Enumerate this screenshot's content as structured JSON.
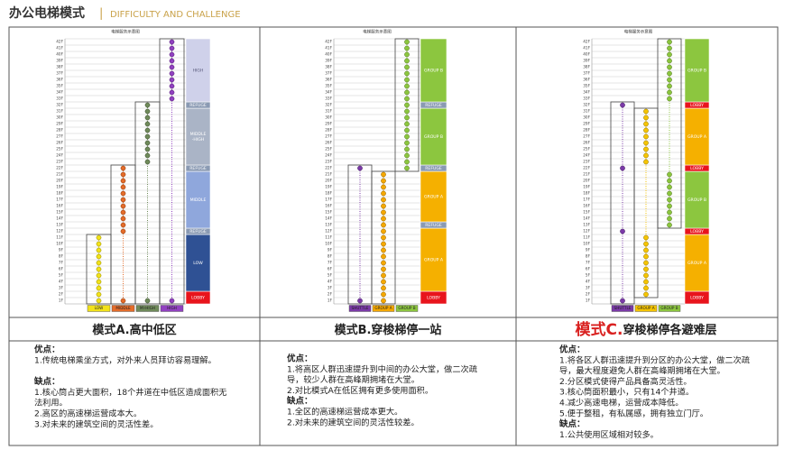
{
  "header": {
    "title": "办公电梯模式",
    "separator": "|",
    "subtitle": "DIFFICULTY AND CHALLENGE"
  },
  "floors": [
    "1F",
    "2F",
    "3F",
    "4F",
    "5F",
    "6F",
    "7F",
    "8F",
    "9F",
    "10F",
    "11F",
    "12F",
    "13F",
    "14F",
    "15F",
    "16F",
    "17F",
    "18F",
    "19F",
    "20F",
    "21F",
    "22F",
    "23F",
    "24F",
    "25F",
    "26F",
    "27F",
    "28F",
    "29F",
    "30F",
    "31F",
    "32F",
    "33F",
    "34F",
    "35F",
    "36F",
    "37F",
    "38F",
    "39F",
    "40F",
    "41F",
    "42F"
  ],
  "panels": [
    {
      "diagram_title": "电梯服务示意图",
      "shafts": [
        {
          "label": "LOW",
          "color": "#f2e21a",
          "stops": [
            [
              1,
              11
            ]
          ]
        },
        {
          "label": "MIDDLE",
          "color": "#e46c2a",
          "stops": [
            [
              1,
              1
            ],
            [
              12,
              22
            ]
          ]
        },
        {
          "label": "MI-HIGH",
          "color": "#6f8a5a",
          "stops": [
            [
              1,
              1
            ],
            [
              23,
              32
            ]
          ]
        },
        {
          "label": "HIGH",
          "color": "#9141c0",
          "stops": [
            [
              1,
              1
            ],
            [
              33,
              42
            ]
          ]
        }
      ],
      "zones": [
        {
          "label": [
            "LOBBY"
          ],
          "from": 1,
          "to": 2,
          "color": "#e8141c",
          "text_color": "#ffffff"
        },
        {
          "label": [
            "LOW"
          ],
          "from": 3,
          "to": 11,
          "color": "#2f5194",
          "text_color": "#ffffff"
        },
        {
          "label": [
            "REFUGE"
          ],
          "from": 12,
          "to": 12,
          "color": "#8a9ab3",
          "text_color": "#ffffff"
        },
        {
          "label": [
            "MIDDLE"
          ],
          "from": 13,
          "to": 21,
          "color": "#8fa7dc",
          "text_color": "#ffffff"
        },
        {
          "label": [
            "REFUGE"
          ],
          "from": 22,
          "to": 22,
          "color": "#8a9ab3",
          "text_color": "#ffffff"
        },
        {
          "label": [
            "MIDDLE",
            "-HIGH"
          ],
          "from": 23,
          "to": 31,
          "color": "#aab4c6",
          "text_color": "#ffffff"
        },
        {
          "label": [
            "REFUGE"
          ],
          "from": 32,
          "to": 32,
          "color": "#8a9ab3",
          "text_color": "#ffffff"
        },
        {
          "label": [
            "HIGH"
          ],
          "from": 33,
          "to": 42,
          "color": "#cfd1ea",
          "text_color": "#555577"
        }
      ],
      "title": [
        {
          "text": "模式A.高中低区",
          "emphasis": false
        }
      ],
      "sections": [
        {
          "heading": "优点：",
          "items": [
            "1.传统电梯乘坐方式，对外来人员拜访容易理解。"
          ]
        },
        {
          "heading": "缺点：",
          "items": [
            "1.核心筒占更大面积，18个井道在中低区造成面积无",
            "法利用。",
            "2.高区的高速梯运营成本大。",
            "3.对未来的建筑空间的灵活性差。"
          ]
        }
      ]
    },
    {
      "diagram_title": "电梯服务示意图",
      "shafts": [
        {
          "label": "SHUTTLE",
          "color": "#7b3aa8",
          "stops": [
            [
              1,
              1
            ],
            [
              22,
              22
            ]
          ]
        },
        {
          "label": "GROUP A",
          "color": "#f5a800",
          "stops": [
            [
              1,
              21
            ]
          ]
        },
        {
          "label": "GROUP B",
          "color": "#8cc63f",
          "stops": [
            [
              22,
              42
            ]
          ]
        }
      ],
      "zones": [
        {
          "label": [
            "LOBBY"
          ],
          "from": 1,
          "to": 2,
          "color": "#e8141c",
          "text_color": "#ffffff"
        },
        {
          "label": [
            "GROUP A"
          ],
          "from": 3,
          "to": 12,
          "color": "#f5b000",
          "text_color": "#ffffff"
        },
        {
          "label": [
            "REFUGE"
          ],
          "from": 13,
          "to": 13,
          "color": "#8a9ab3",
          "text_color": "#ffffff"
        },
        {
          "label": [
            "GROUP A"
          ],
          "from": 14,
          "to": 21,
          "color": "#f5b000",
          "text_color": "#ffffff"
        },
        {
          "label": [
            "REFUGE"
          ],
          "from": 22,
          "to": 22,
          "color": "#8a9ab3",
          "text_color": "#ffffff"
        },
        {
          "label": [
            "GROUP B"
          ],
          "from": 23,
          "to": 31,
          "color": "#8cc63f",
          "text_color": "#ffffff"
        },
        {
          "label": [
            "REFUGE"
          ],
          "from": 32,
          "to": 32,
          "color": "#8a9ab3",
          "text_color": "#ffffff"
        },
        {
          "label": [
            "GROUP B"
          ],
          "from": 33,
          "to": 42,
          "color": "#8cc63f",
          "text_color": "#ffffff"
        }
      ],
      "title": [
        {
          "text": "模式B.穿梭梯停一站",
          "emphasis": false
        }
      ],
      "sections": [
        {
          "heading": "优点：",
          "items": [
            "1.将高区人群迅速提升到中间的办公大堂，做二次疏",
            "导，较少人群在高峰期拥堵在大堂。",
            "2.对比模式A在低区拥有更多使用面积。"
          ]
        },
        {
          "heading": "缺点：",
          "items": [
            "1.全区的高速梯运营成本更大。",
            "2.对未来的建筑空间的灵活性较差。"
          ]
        }
      ]
    },
    {
      "diagram_title": "电梯服务示意图",
      "shafts": [
        {
          "label": "SHUTTLE",
          "color": "#7b3aa8",
          "stops": [
            [
              1,
              1
            ],
            [
              12,
              12
            ],
            [
              22,
              22
            ],
            [
              32,
              32
            ]
          ]
        },
        {
          "label": "GROUP A",
          "color": "#f5c400",
          "stops": [
            [
              2,
              11
            ],
            [
              23,
              31
            ]
          ]
        },
        {
          "label": "GROUP B",
          "color": "#8cc63f",
          "stops": [
            [
              13,
              21
            ],
            [
              33,
              42
            ]
          ]
        }
      ],
      "zones": [
        {
          "label": [
            "LOBBY"
          ],
          "from": 1,
          "to": 2,
          "color": "#e8141c",
          "text_color": "#ffffff"
        },
        {
          "label": [
            "GROUP A"
          ],
          "from": 3,
          "to": 11,
          "color": "#f5b000",
          "text_color": "#ffffff"
        },
        {
          "label": [
            "LOBBY"
          ],
          "from": 12,
          "to": 12,
          "color": "#e8141c",
          "text_color": "#ffffff"
        },
        {
          "label": [
            "GROUP B"
          ],
          "from": 13,
          "to": 21,
          "color": "#8cc63f",
          "text_color": "#ffffff"
        },
        {
          "label": [
            "LOBBY"
          ],
          "from": 22,
          "to": 22,
          "color": "#e8141c",
          "text_color": "#ffffff"
        },
        {
          "label": [
            "GROUP A"
          ],
          "from": 23,
          "to": 31,
          "color": "#f5b000",
          "text_color": "#ffffff"
        },
        {
          "label": [
            "LOBBY"
          ],
          "from": 32,
          "to": 32,
          "color": "#e8141c",
          "text_color": "#ffffff"
        },
        {
          "label": [
            "GROUP B"
          ],
          "from": 33,
          "to": 42,
          "color": "#8cc63f",
          "text_color": "#ffffff"
        }
      ],
      "title": [
        {
          "text": "模式C.",
          "emphasis": true
        },
        {
          "text": "穿梭梯停各避难层",
          "emphasis": false
        }
      ],
      "sections": [
        {
          "heading": "优点：",
          "items": [
            "1.将各区人群迅速提升到分区的办公大堂，做二次疏",
            "导，最大程度避免人群在高峰期拥堵在大堂。",
            "2.分区模式使得产品具备高灵活性。",
            "3.核心筒面积最小，只有14个井道。",
            "4.减少高速电梯，运营成本降低。",
            "5.便于整租，有私属感，拥有独立门厅。"
          ]
        },
        {
          "heading": "缺点：",
          "items": [
            "1.公共使用区域相对较多。"
          ]
        }
      ]
    }
  ]
}
